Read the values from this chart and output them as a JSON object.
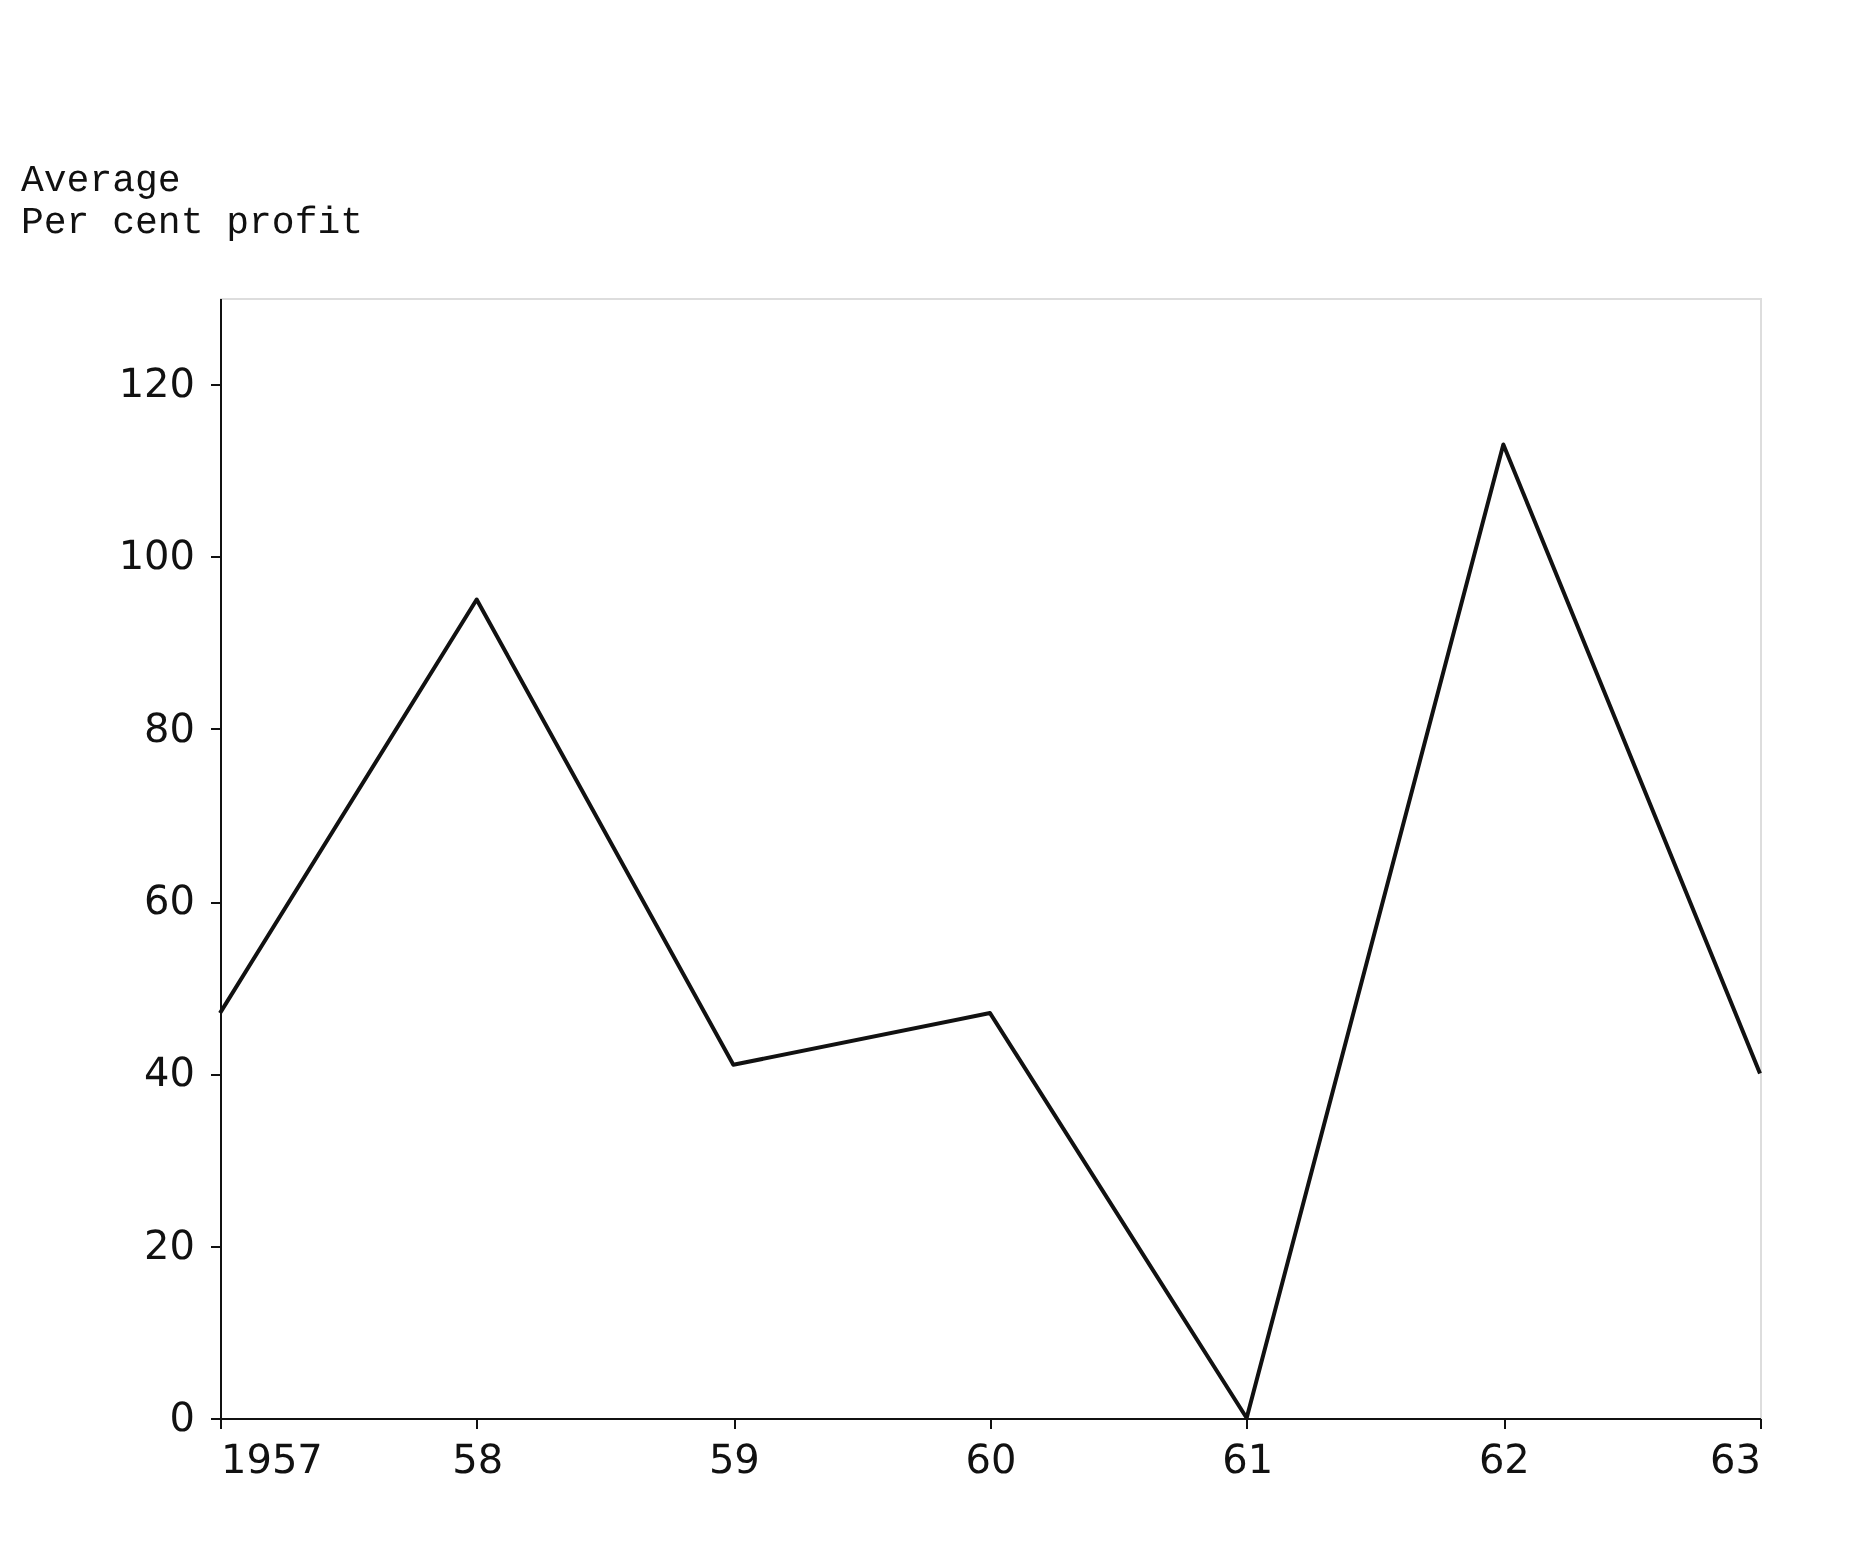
{
  "chart_data": {
    "type": "line",
    "ylabel": "Average\nPer cent profit",
    "x": [
      1957,
      1958,
      1959,
      1960,
      1961,
      1962,
      1963
    ],
    "series": [
      {
        "color": "#111111",
        "values": [
          47,
          95,
          41,
          47,
          0,
          113,
          40
        ]
      }
    ],
    "xlim": [
      1957,
      1963
    ],
    "xticks": [
      {
        "value": 1957,
        "label": "1957"
      },
      {
        "value": 1958,
        "label": "58"
      },
      {
        "value": 1959,
        "label": "59"
      },
      {
        "value": 1960,
        "label": "60"
      },
      {
        "value": 1961,
        "label": "61"
      },
      {
        "value": 1962,
        "label": "62"
      },
      {
        "value": 1963,
        "label": "63"
      }
    ],
    "ylim": [
      0,
      130
    ],
    "yticks": [
      0,
      20,
      40,
      60,
      80,
      100,
      120
    ],
    "grid": false,
    "marker": "none",
    "line_style": "solid"
  }
}
